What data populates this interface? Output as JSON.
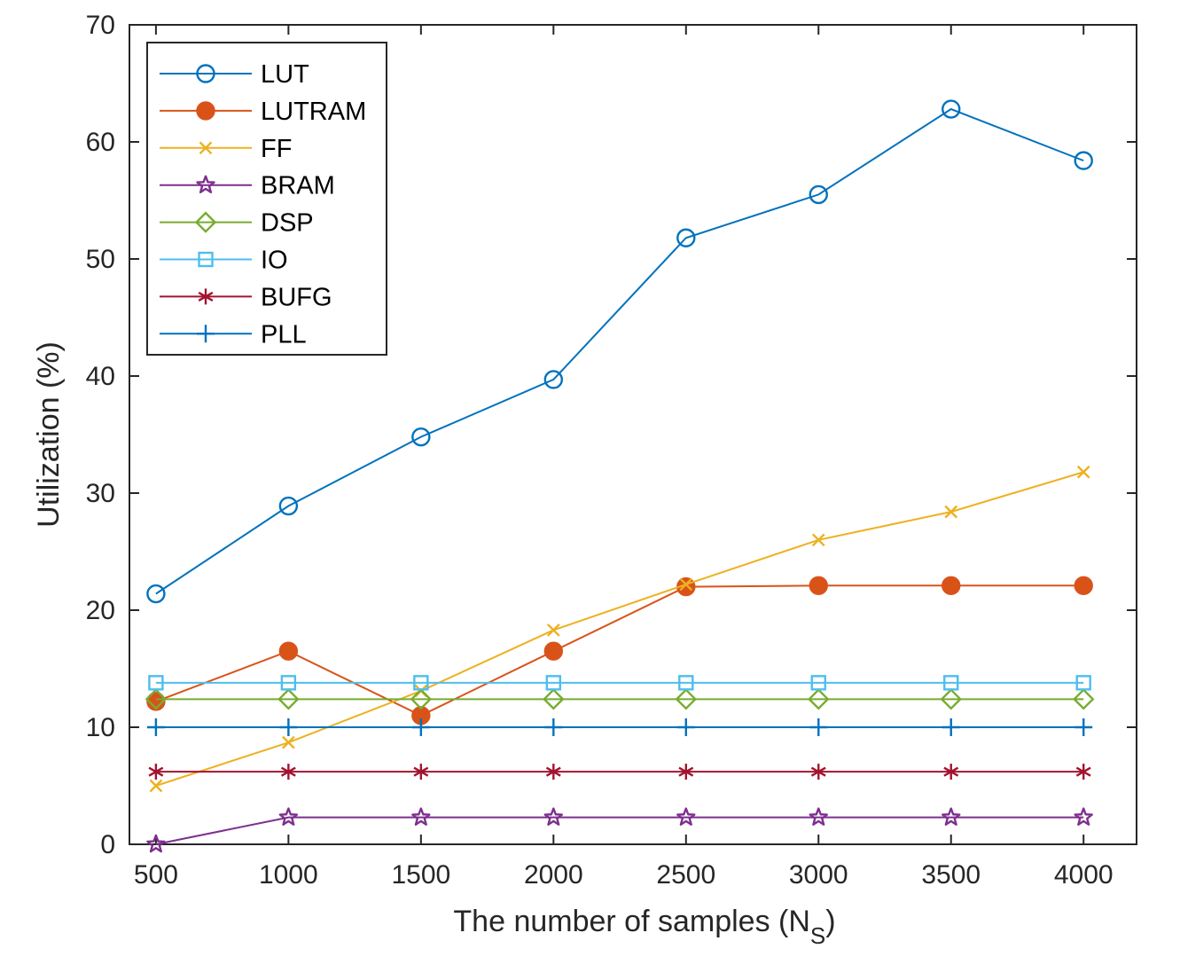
{
  "chart_data": {
    "type": "line",
    "title": "",
    "xlabel": "The number of samples (N",
    "xlabel_subscript": "S",
    "xlabel_suffix": ")",
    "ylabel": "Utilization (%)",
    "xlim": [
      400,
      4200
    ],
    "ylim": [
      0,
      70
    ],
    "x": [
      500,
      1000,
      1500,
      2000,
      2500,
      3000,
      3500,
      4000
    ],
    "xticks": [
      "500",
      "1000",
      "1500",
      "2000",
      "2500",
      "3000",
      "3500",
      "4000"
    ],
    "yticks": [
      "0",
      "10",
      "20",
      "30",
      "40",
      "50",
      "60",
      "70"
    ],
    "grid": false,
    "legend_position": "top-left",
    "series": [
      {
        "name": "LUT",
        "color": "#0072BD",
        "marker": "circle",
        "values": [
          21.4,
          28.9,
          34.8,
          39.7,
          51.8,
          55.5,
          62.8,
          58.4
        ]
      },
      {
        "name": "LUTRAM",
        "color": "#D95319",
        "marker": "filled-circle",
        "values": [
          12.2,
          16.5,
          11.0,
          16.5,
          22.0,
          22.1,
          22.1,
          22.1
        ]
      },
      {
        "name": "FF",
        "color": "#EDB120",
        "marker": "x",
        "values": [
          5.0,
          8.7,
          13.1,
          18.3,
          22.2,
          26.0,
          28.4,
          31.8
        ]
      },
      {
        "name": "BRAM",
        "color": "#7E2F8E",
        "marker": "star",
        "values": [
          0.0,
          2.3,
          2.3,
          2.3,
          2.3,
          2.3,
          2.3,
          2.3
        ]
      },
      {
        "name": "DSP",
        "color": "#77AC30",
        "marker": "diamond",
        "values": [
          12.4,
          12.4,
          12.4,
          12.4,
          12.4,
          12.4,
          12.4,
          12.4
        ]
      },
      {
        "name": "IO",
        "color": "#4DBEEE",
        "marker": "square",
        "values": [
          13.8,
          13.8,
          13.8,
          13.8,
          13.8,
          13.8,
          13.8,
          13.8
        ]
      },
      {
        "name": "BUFG",
        "color": "#A2142F",
        "marker": "asterisk",
        "values": [
          6.2,
          6.2,
          6.2,
          6.2,
          6.2,
          6.2,
          6.2,
          6.2
        ]
      },
      {
        "name": "PLL",
        "color": "#0072BD",
        "marker": "plus",
        "values": [
          10.0,
          10.0,
          10.0,
          10.0,
          10.0,
          10.0,
          10.0,
          10.0
        ]
      }
    ]
  }
}
